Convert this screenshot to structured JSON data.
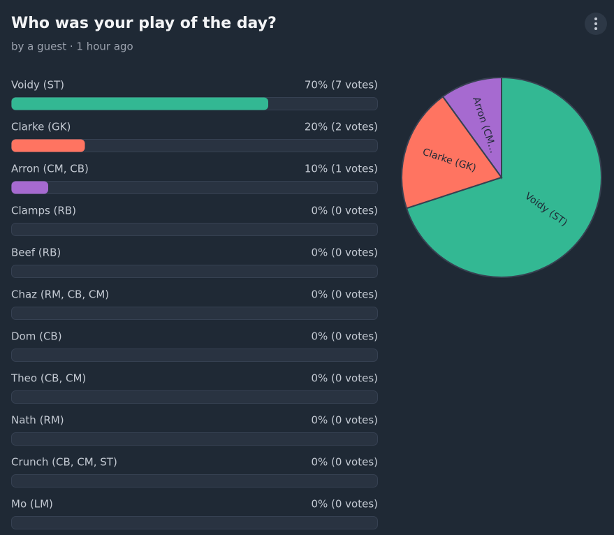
{
  "header": {
    "title": "Who was your play of the day?",
    "byline": "by a guest · 1 hour ago"
  },
  "options": [
    {
      "name": "Voidy (ST)",
      "percent": 70,
      "label": "70% (7 votes)",
      "color": "#33b893"
    },
    {
      "name": "Clarke (GK)",
      "percent": 20,
      "label": "20% (2 votes)",
      "color": "#ff7461"
    },
    {
      "name": "Arron (CM, CB)",
      "percent": 10,
      "label": "10% (1 votes)",
      "color": "#a66ad0"
    },
    {
      "name": "Clamps (RB)",
      "percent": 0,
      "label": "0% (0 votes)",
      "color": "#33b893"
    },
    {
      "name": "Beef (RB)",
      "percent": 0,
      "label": "0% (0 votes)",
      "color": "#33b893"
    },
    {
      "name": "Chaz (RM, CB, CM)",
      "percent": 0,
      "label": "0% (0 votes)",
      "color": "#33b893"
    },
    {
      "name": "Dom (CB)",
      "percent": 0,
      "label": "0% (0 votes)",
      "color": "#33b893"
    },
    {
      "name": "Theo (CB, CM)",
      "percent": 0,
      "label": "0% (0 votes)",
      "color": "#33b893"
    },
    {
      "name": "Nath (RM)",
      "percent": 0,
      "label": "0% (0 votes)",
      "color": "#33b893"
    },
    {
      "name": "Crunch (CB, CM, ST)",
      "percent": 0,
      "label": "0% (0 votes)",
      "color": "#33b893"
    },
    {
      "name": "Mo (LM)",
      "percent": 0,
      "label": "0% (0 votes)",
      "color": "#33b893"
    }
  ],
  "pie": {
    "labels": [
      "Voidy (ST)",
      "Clarke (GK)",
      "Arron (CM…"
    ]
  }
}
